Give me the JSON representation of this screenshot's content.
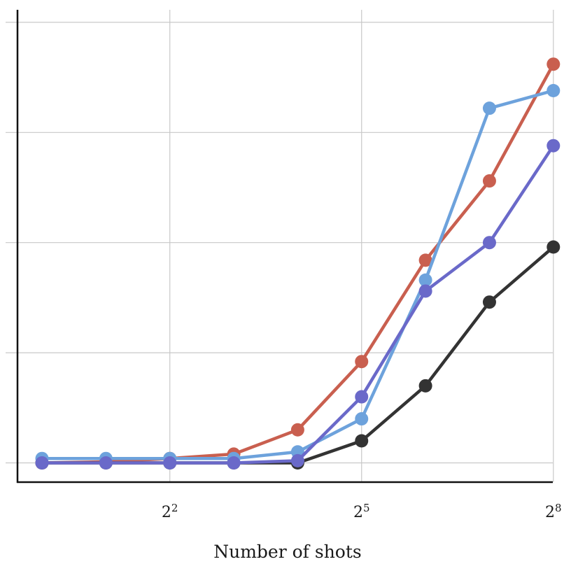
{
  "chart_data": {
    "type": "line",
    "xlabel": "Number of shots",
    "ylabel": "",
    "x_scale": "log2",
    "x": [
      1,
      2,
      4,
      8,
      16,
      32,
      64,
      128,
      256
    ],
    "xticks": [
      {
        "value": 4,
        "base": "2",
        "exp": "2"
      },
      {
        "value": 32,
        "base": "2",
        "exp": "5"
      },
      {
        "value": 256,
        "base": "2",
        "exp": "8"
      }
    ],
    "ylim": [
      -0.008,
      0.2
    ],
    "y_gridlines": [
      0,
      0.05,
      0.1,
      0.15,
      0.2
    ],
    "grid": true,
    "series": [
      {
        "color": "#c95f4f",
        "values": [
          0.0,
          0.0005,
          0.002,
          0.004,
          0.015,
          0.046,
          0.092,
          0.128,
          0.181
        ]
      },
      {
        "color": "#333333",
        "values": [
          0.0,
          0.0,
          0.0,
          0.0,
          0.0,
          0.01,
          0.035,
          0.073,
          0.098
        ]
      },
      {
        "color": "#6da2dc",
        "values": [
          0.002,
          0.002,
          0.002,
          0.002,
          0.005,
          0.02,
          0.083,
          0.161,
          0.169
        ]
      },
      {
        "color": "#6a69c9",
        "values": [
          0.0,
          0.0,
          0.0,
          0.0,
          0.001,
          0.03,
          0.078,
          0.1,
          0.144
        ]
      }
    ]
  }
}
